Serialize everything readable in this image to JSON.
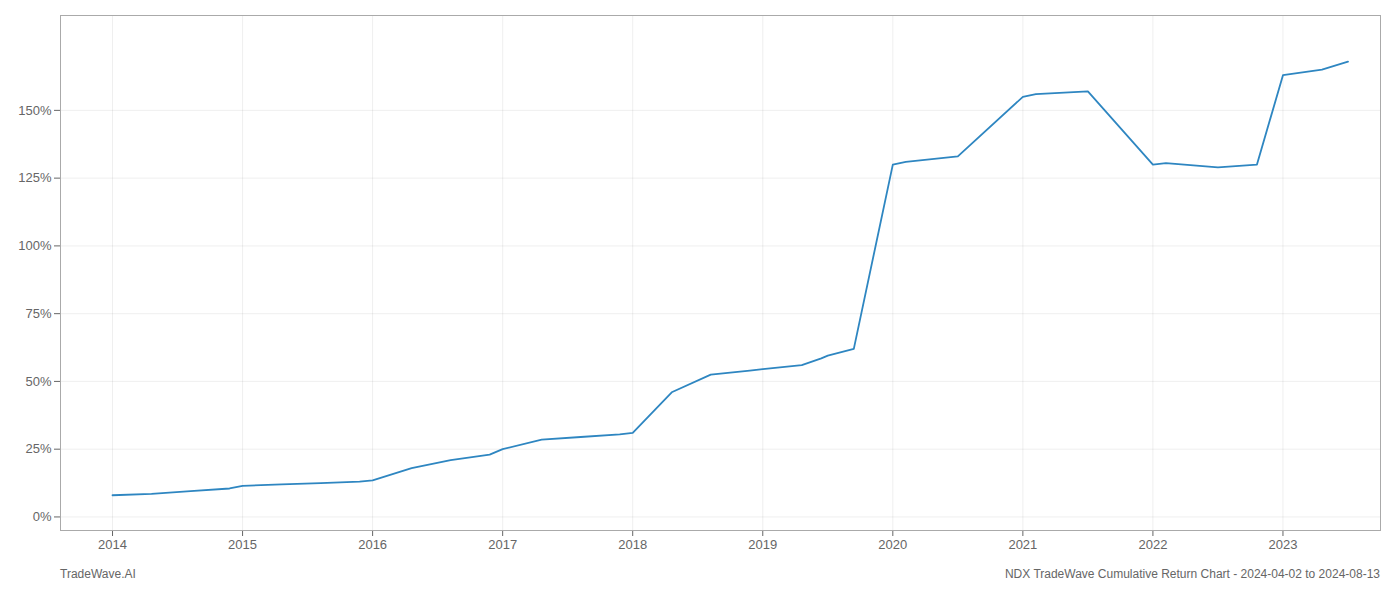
{
  "chart_data": {
    "type": "line",
    "footer_left": "TradeWave.AI",
    "footer_right": "NDX TradeWave Cumulative Return Chart - 2024-04-02 to 2024-08-13",
    "color": "#2e86c1",
    "x": [
      2014.0,
      2014.3,
      2014.6,
      2014.9,
      2015.0,
      2015.3,
      2015.6,
      2015.9,
      2016.0,
      2016.3,
      2016.6,
      2016.9,
      2017.0,
      2017.3,
      2017.6,
      2017.9,
      2018.0,
      2018.3,
      2018.6,
      2018.9,
      2019.0,
      2019.3,
      2019.45,
      2019.5,
      2019.7,
      2020.0,
      2020.1,
      2020.5,
      2021.0,
      2021.1,
      2021.5,
      2022.0,
      2022.1,
      2022.5,
      2022.8,
      2023.0,
      2023.3,
      2023.5
    ],
    "values": [
      8.0,
      8.5,
      9.5,
      10.5,
      11.5,
      12.0,
      12.5,
      13.0,
      13.5,
      18.0,
      21.0,
      23.0,
      25.0,
      28.5,
      29.5,
      30.5,
      31.0,
      46.0,
      52.5,
      54.0,
      54.5,
      56.0,
      58.5,
      59.5,
      62.0,
      130.0,
      131.0,
      133.0,
      155.0,
      156.0,
      157.0,
      130.0,
      130.5,
      129.0,
      130.0,
      163.0,
      165.0,
      168.0
    ],
    "xlim": [
      2013.6,
      2023.75
    ],
    "xticks": [
      2014,
      2015,
      2016,
      2017,
      2018,
      2019,
      2020,
      2021,
      2022,
      2023
    ],
    "ylim": [
      -5,
      185
    ],
    "yticks": [
      {
        "value": 0,
        "label": "0%"
      },
      {
        "value": 25,
        "label": "25%"
      },
      {
        "value": 50,
        "label": "50%"
      },
      {
        "value": 75,
        "label": "75%"
      },
      {
        "value": 100,
        "label": "100%"
      },
      {
        "value": 125,
        "label": "125%"
      },
      {
        "value": 150,
        "label": "150%"
      }
    ],
    "grid": true
  }
}
